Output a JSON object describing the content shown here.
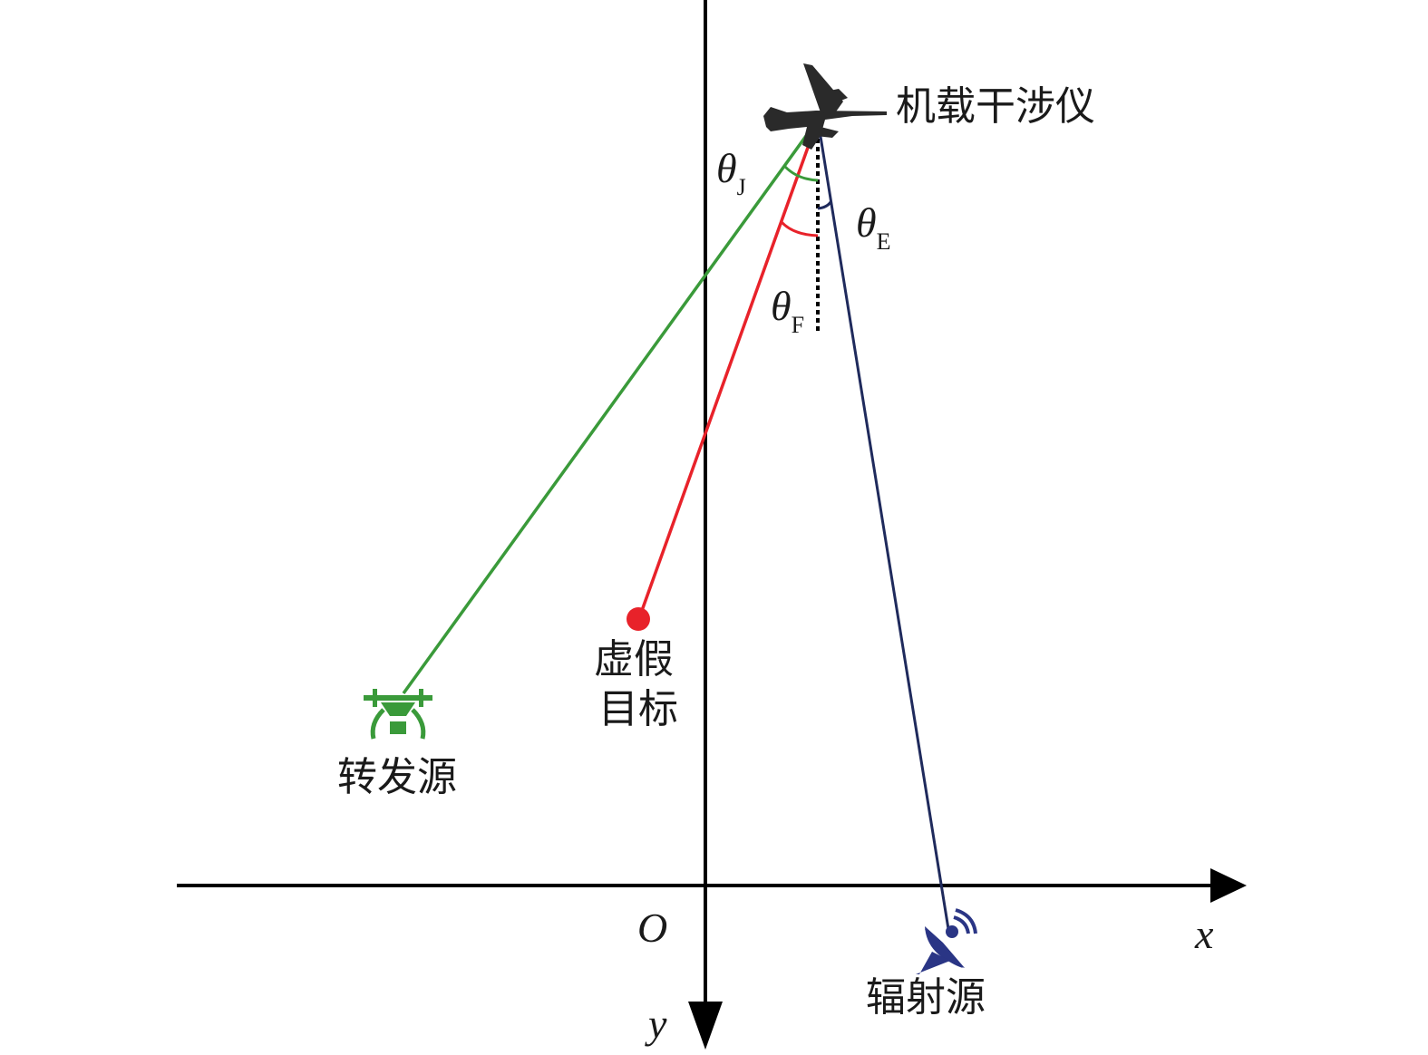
{
  "labels": {
    "jammer": "机载干涉仪",
    "false_target_line1": "虚假",
    "false_target_line2": "目标",
    "repeater": "转发源",
    "emitter": "辐射源",
    "origin": "O",
    "x_axis": "x",
    "y_axis": "y",
    "theta": "θ",
    "theta_j_sub": "J",
    "theta_e_sub": "E",
    "theta_f_sub": "F"
  },
  "colors": {
    "repeater_line": "#3a9a3a",
    "false_target_line": "#e8222a",
    "emitter_line": "#1f2a5c",
    "axes": "#000000",
    "aircraft": "#2a2a2a",
    "emitter_icon": "#2a3585"
  },
  "icons": [
    "airplane-icon",
    "drone-icon",
    "radar-dish-icon"
  ]
}
